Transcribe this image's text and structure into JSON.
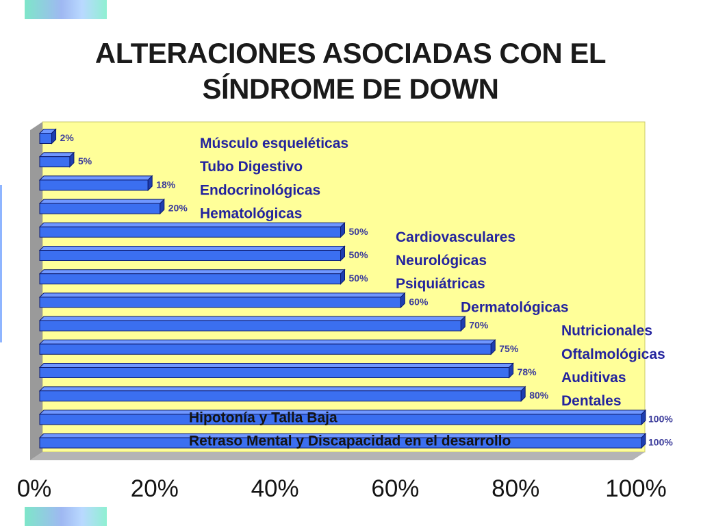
{
  "title": {
    "line1": "ALTERACIONES ASOCIADAS CON EL",
    "line2": "SÍNDROME DE DOWN"
  },
  "colors": {
    "panel": "#ffff99",
    "bar_face": "#3b6ff0",
    "bar_top": "#6f97ff",
    "bar_end": "#1e3eb0",
    "label_blue": "#23239e",
    "label_dark": "#141414"
  },
  "chart_data": {
    "type": "bar",
    "orientation": "horizontal",
    "categories": [
      "Músculo esqueléticas",
      "Tubo Digestivo",
      "Endocrinológicas",
      "Hematológicas",
      "Cardiovasculares",
      "Neurológicas",
      "Psiquiátricas",
      "Dermatológicas",
      "Nutricionales",
      "Oftalmológicas",
      "Auditivas",
      "Dentales",
      "Hipotonía y Talla Baja",
      "Retraso Mental y Discapacidad en el desarrollo"
    ],
    "values": [
      2,
      5,
      18,
      20,
      50,
      50,
      50,
      60,
      70,
      75,
      78,
      80,
      100,
      100
    ],
    "value_labels": [
      "2%",
      "5%",
      "18%",
      "20%",
      "50%",
      "50%",
      "50%",
      "60%",
      "70%",
      "75%",
      "78%",
      "80%",
      "100%",
      "100%"
    ],
    "x_ticks": [
      "0%",
      "20%",
      "40%",
      "60%",
      "80%",
      "100%"
    ],
    "xlim": [
      0,
      100
    ],
    "grid": false,
    "legend": "none"
  }
}
